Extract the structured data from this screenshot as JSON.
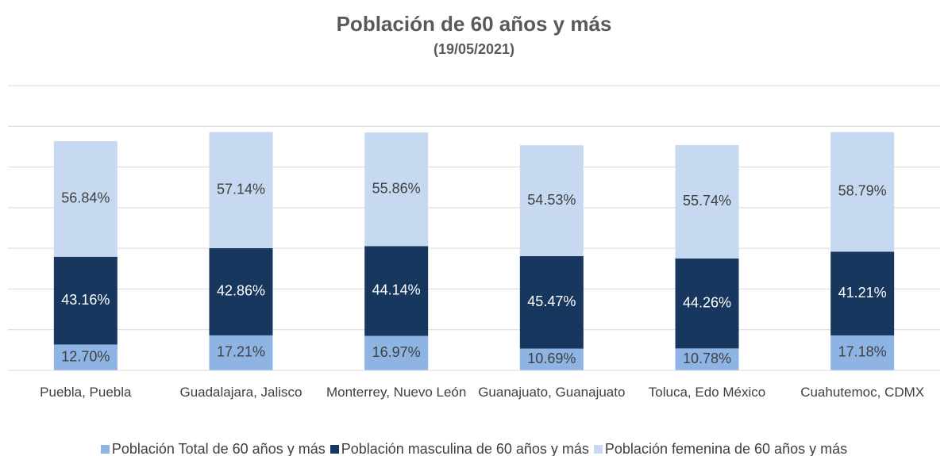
{
  "chart_data": {
    "type": "stacked_bar",
    "title": "Población de 60 años y más",
    "subtitle": "(19/05/2021)",
    "categories": [
      "Puebla, Puebla",
      "Guadalajara, Jalisco",
      "Monterrey, Nuevo León",
      "Guanajuato, Guanajuato",
      "Toluca, Edo México",
      "Cuahutemoc, CDMX"
    ],
    "series": [
      {
        "name": "Población Total de 60 años y más",
        "color": "#8eb4e3",
        "values": [
          12.7,
          17.21,
          16.97,
          10.69,
          10.78,
          17.18
        ],
        "value_labels": [
          "12.70%",
          "17.21%",
          "16.97%",
          "10.69%",
          "10.78%",
          "17.18%"
        ]
      },
      {
        "name": "Población masculina de 60 años y más",
        "color": "#17375e",
        "values": [
          43.16,
          42.86,
          44.14,
          45.47,
          44.26,
          41.21
        ],
        "value_labels": [
          "43.16%",
          "42.86%",
          "44.14%",
          "45.47%",
          "44.26%",
          "41.21%"
        ]
      },
      {
        "name": "Población femenina de 60 años y más",
        "color": "#c6d9f1",
        "values": [
          56.84,
          57.14,
          55.86,
          54.53,
          55.74,
          58.79
        ],
        "value_labels": [
          "56.84%",
          "57.14%",
          "55.86%",
          "54.53%",
          "55.74%",
          "58.79%"
        ]
      }
    ],
    "ylim": [
      0,
      140
    ],
    "yticks": [
      0,
      20,
      40,
      60,
      80,
      100,
      120,
      140
    ],
    "grid": true,
    "legend": "bottom"
  }
}
